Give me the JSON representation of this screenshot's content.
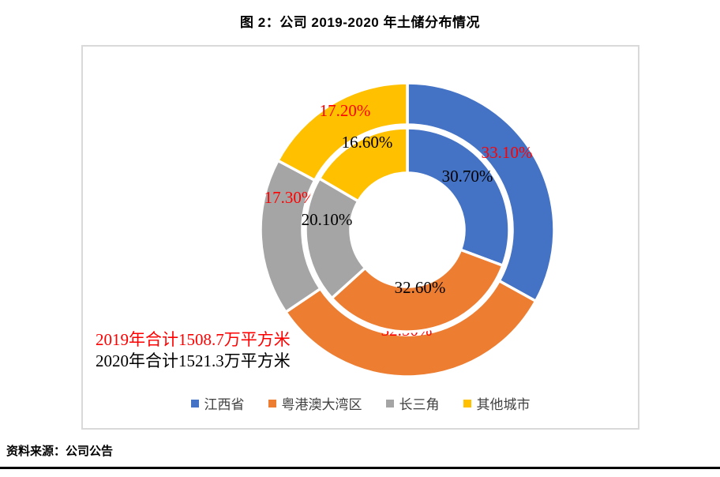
{
  "title": "图 2：公司 2019-2020 年土储分布情况",
  "source": "资料来源：公司公告",
  "chart_data": {
    "type": "donut",
    "title": "图 2：公司 2019-2020 年土储分布情况",
    "categories": [
      "江西省",
      "粤港澳大湾区",
      "长三角",
      "其他城市"
    ],
    "colors": [
      "#4472C4",
      "#ED7D31",
      "#A5A5A5",
      "#FFC000"
    ],
    "series": [
      {
        "name": "2019",
        "ring": "outer",
        "values": [
          33.1,
          32.5,
          17.3,
          17.2
        ],
        "labels": [
          "33.10%",
          "32.50%",
          "17.30%",
          "17.20%"
        ],
        "label_color": "#FF0000"
      },
      {
        "name": "2020",
        "ring": "inner",
        "values": [
          30.7,
          32.6,
          20.1,
          16.6
        ],
        "labels": [
          "30.70%",
          "32.60%",
          "20.10%",
          "16.60%"
        ],
        "label_color": "#000000"
      }
    ],
    "annotations": [
      {
        "text": "2019年合计1508.7万平方米",
        "color": "#FF0000"
      },
      {
        "text": "2020年合计1521.3万平方米",
        "color": "#000000"
      }
    ],
    "legend_position": "bottom-center",
    "start_angle": "12-oclock",
    "direction": "clockwise"
  }
}
